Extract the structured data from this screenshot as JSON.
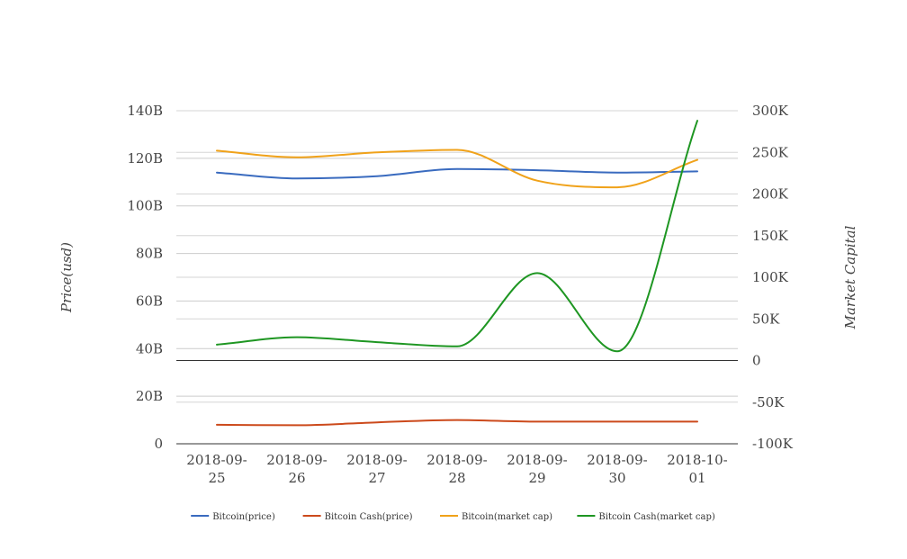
{
  "chart_data": {
    "type": "line",
    "categories": [
      "2018-09-25",
      "2018-09-26",
      "2018-09-27",
      "2018-09-28",
      "2018-09-29",
      "2018-09-30",
      "2018-10-01"
    ],
    "category_lines": [
      [
        "2018-09-",
        "25"
      ],
      [
        "2018-09-",
        "26"
      ],
      [
        "2018-09-",
        "27"
      ],
      [
        "2018-09-",
        "28"
      ],
      [
        "2018-09-",
        "29"
      ],
      [
        "2018-09-",
        "30"
      ],
      [
        "2018-10-",
        "01"
      ]
    ],
    "y_left": {
      "label": "Price(usd)",
      "ticks": [
        0,
        20,
        40,
        60,
        80,
        100,
        120,
        140
      ],
      "tick_labels": [
        "0",
        "20B",
        "40B",
        "60B",
        "80B",
        "100B",
        "120B",
        "140B"
      ],
      "unit": "B",
      "range": [
        0,
        140
      ]
    },
    "y_right": {
      "label": "Market Capital",
      "ticks": [
        -100,
        -50,
        0,
        50,
        100,
        150,
        200,
        250,
        300
      ],
      "tick_labels": [
        "-100K",
        "-50K",
        "0",
        "50K",
        "100K",
        "150K",
        "200K",
        "250K",
        "300K"
      ],
      "unit": "K",
      "range": [
        -100,
        300
      ]
    },
    "grid": true,
    "legend_position": "bottom",
    "series": [
      {
        "name": "Bitcoin(price)",
        "axis": "left",
        "color": "#3a6bbf",
        "values": [
          114,
          111.5,
          112.5,
          115.5,
          115,
          114,
          114.5
        ]
      },
      {
        "name": "Bitcoin Cash(price)",
        "axis": "left",
        "color": "#cc4a1c",
        "values": [
          8,
          7.8,
          9,
          10,
          9.3,
          9.3,
          9.3
        ]
      },
      {
        "name": "Bitcoin(market cap)",
        "axis": "right",
        "color": "#f0a21a",
        "values": [
          252,
          244,
          250,
          253,
          216,
          208,
          241
        ]
      },
      {
        "name": "Bitcoin Cash(market cap)",
        "axis": "right",
        "color": "#1e9622",
        "values": [
          19,
          28,
          22,
          17,
          105,
          11,
          288
        ]
      }
    ]
  }
}
